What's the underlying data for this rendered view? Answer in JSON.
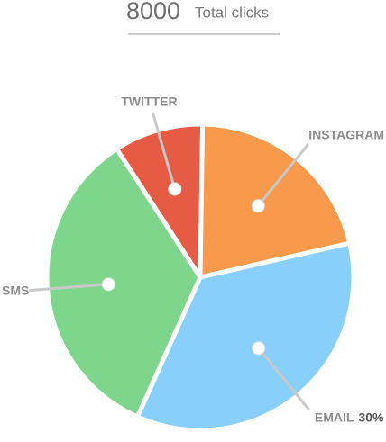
{
  "chart_data": {
    "type": "pie",
    "total": 8000,
    "total_label": "Total clicks",
    "categories": [
      "TWITTER",
      "INSTAGRAM",
      "EMAIL",
      "SMS"
    ],
    "values": [
      8,
      18,
      30,
      29
    ],
    "value_labels": [
      null,
      null,
      "30%",
      null
    ],
    "colors": [
      "#e55b44",
      "#f8994b",
      "#88cffb",
      "#7dd68b"
    ]
  }
}
